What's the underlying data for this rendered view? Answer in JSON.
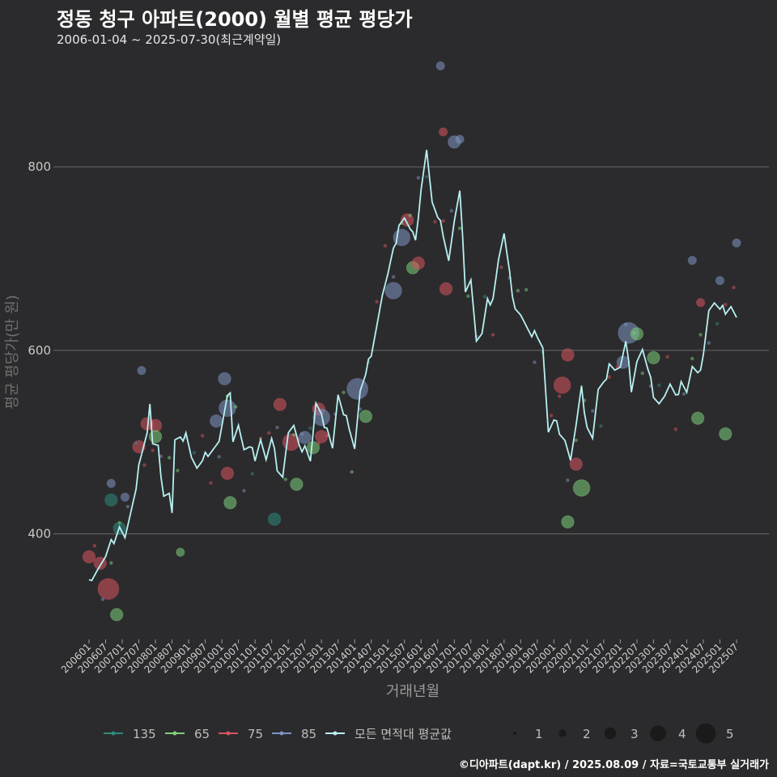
{
  "chart_data": {
    "type": "scatter",
    "title": "정동 청구 아파트(2000) 월별 평균 평당가",
    "subtitle": "2006-01-04 ~ 2025-07-30(최근계약일)",
    "xlabel": "거래년월",
    "ylabel": "평균 평당가(만 원)",
    "ylim": [
      285,
      920
    ],
    "yticks": [
      400,
      600,
      800
    ],
    "xticks": [
      "200601",
      "200607",
      "200701",
      "200707",
      "200801",
      "200807",
      "200901",
      "200907",
      "201001",
      "201007",
      "201101",
      "201107",
      "201201",
      "201207",
      "201301",
      "201307",
      "201401",
      "201407",
      "201501",
      "201507",
      "201601",
      "201607",
      "201701",
      "201707",
      "201801",
      "201807",
      "201901",
      "201907",
      "202001",
      "202007",
      "202101",
      "202107",
      "202201",
      "202207",
      "202301",
      "202307",
      "202401",
      "202407",
      "202501",
      "202507"
    ],
    "caption": "©디아파트(dapt.kr) / 2025.08.09 / 자료=국토교통부 실거래가",
    "legend": {
      "areas": [
        {
          "label": "135",
          "color": "#2f8a7e"
        },
        {
          "label": "65",
          "color": "#7ed07a"
        },
        {
          "label": "75",
          "color": "#d9545e"
        },
        {
          "label": "85",
          "color": "#7f93c2"
        },
        {
          "label": "모든 면적대 평균값",
          "color": "#b8f0f0"
        }
      ],
      "sizes": [
        "1",
        "2",
        "3",
        "4",
        "5"
      ]
    },
    "avg_line": {
      "name": "모든 면적대 평균값",
      "anchors": [
        [
          "200601",
          350
        ],
        [
          "200604",
          362
        ],
        [
          "200607",
          372
        ],
        [
          "200610",
          395
        ],
        [
          "200612",
          410
        ],
        [
          "200702",
          395
        ],
        [
          "200705",
          430
        ],
        [
          "200707",
          480
        ],
        [
          "200710",
          510
        ],
        [
          "200711",
          540
        ],
        [
          "200712",
          495
        ],
        [
          "200802",
          490
        ],
        [
          "200804",
          445
        ],
        [
          "200806",
          445
        ],
        [
          "200807",
          422
        ],
        [
          "200808",
          500
        ],
        [
          "200810",
          500
        ],
        [
          "200812",
          515
        ],
        [
          "200902",
          485
        ],
        [
          "200904",
          470
        ],
        [
          "200906",
          475
        ],
        [
          "200908",
          490
        ],
        [
          "200910",
          495
        ],
        [
          "200912",
          500
        ],
        [
          "201002",
          530
        ],
        [
          "201004",
          560
        ],
        [
          "201005",
          505
        ],
        [
          "201007",
          520
        ],
        [
          "201009",
          490
        ],
        [
          "201011",
          490
        ],
        [
          "201101",
          485
        ],
        [
          "201103",
          505
        ],
        [
          "201105",
          480
        ],
        [
          "201107",
          500
        ],
        [
          "201109",
          475
        ],
        [
          "201111",
          465
        ],
        [
          "201201",
          510
        ],
        [
          "201203",
          515
        ],
        [
          "201205",
          490
        ],
        [
          "201207",
          500
        ],
        [
          "201209",
          480
        ],
        [
          "201211",
          540
        ],
        [
          "201301",
          525
        ],
        [
          "201303",
          520
        ],
        [
          "201305",
          495
        ],
        [
          "201307",
          550
        ],
        [
          "201309",
          525
        ],
        [
          "201311",
          520
        ],
        [
          "201401",
          495
        ],
        [
          "201403",
          555
        ],
        [
          "201405",
          570
        ],
        [
          "201407",
          600
        ],
        [
          "201409",
          630
        ],
        [
          "201411",
          660
        ],
        [
          "201501",
          680
        ],
        [
          "201503",
          705
        ],
        [
          "201505",
          740
        ],
        [
          "201507",
          745
        ],
        [
          "201509",
          730
        ],
        [
          "201511",
          720
        ],
        [
          "201601",
          780
        ],
        [
          "201603",
          820
        ],
        [
          "201605",
          760
        ],
        [
          "201607",
          740
        ],
        [
          "201609",
          730
        ],
        [
          "201611",
          700
        ],
        [
          "201701",
          740
        ],
        [
          "201703",
          770
        ],
        [
          "201705",
          670
        ],
        [
          "201707",
          680
        ],
        [
          "201709",
          610
        ],
        [
          "201711",
          615
        ],
        [
          "201801",
          650
        ],
        [
          "201803",
          660
        ],
        [
          "201805",
          700
        ],
        [
          "201807",
          725
        ],
        [
          "201809",
          680
        ],
        [
          "201811",
          650
        ],
        [
          "201901",
          640
        ],
        [
          "201903",
          625
        ],
        [
          "201905",
          610
        ],
        [
          "201907",
          620
        ],
        [
          "201909",
          605
        ],
        [
          "201911",
          510
        ],
        [
          "202001",
          520
        ],
        [
          "202003",
          515
        ],
        [
          "202005",
          505
        ],
        [
          "202007",
          480
        ],
        [
          "202009",
          515
        ],
        [
          "202011",
          555
        ],
        [
          "202101",
          520
        ],
        [
          "202103",
          505
        ],
        [
          "202105",
          555
        ],
        [
          "202107",
          560
        ],
        [
          "202109",
          590
        ],
        [
          "202111",
          580
        ],
        [
          "202201",
          580
        ],
        [
          "202203",
          605
        ],
        [
          "202205",
          560
        ],
        [
          "202207",
          590
        ],
        [
          "202209",
          600
        ],
        [
          "202211",
          575
        ],
        [
          "202301",
          555
        ],
        [
          "202303",
          545
        ],
        [
          "202305",
          550
        ],
        [
          "202307",
          560
        ],
        [
          "202309",
          545
        ],
        [
          "202311",
          570
        ],
        [
          "202401",
          555
        ],
        [
          "202403",
          580
        ],
        [
          "202405",
          570
        ],
        [
          "202407",
          600
        ],
        [
          "202409",
          645
        ],
        [
          "202411",
          650
        ],
        [
          "202501",
          640
        ],
        [
          "202503",
          645
        ],
        [
          "202505",
          650
        ],
        [
          "202507",
          635
        ]
      ]
    },
    "points": [
      {
        "area": "75",
        "ym": "200601",
        "y": 375,
        "size": 2
      },
      {
        "area": "75",
        "ym": "200605",
        "y": 368,
        "size": 2
      },
      {
        "area": "75",
        "ym": "200608",
        "y": 340,
        "size": 4
      },
      {
        "area": "65",
        "ym": "200611",
        "y": 312,
        "size": 2
      },
      {
        "area": "135",
        "ym": "200609",
        "y": 437,
        "size": 2
      },
      {
        "area": "135",
        "ym": "200612",
        "y": 406,
        "size": 2
      },
      {
        "area": "85",
        "ym": "200609",
        "y": 455,
        "size": 1
      },
      {
        "area": "85",
        "ym": "200702",
        "y": 440,
        "size": 1
      },
      {
        "area": "75",
        "ym": "200707",
        "y": 495,
        "size": 2
      },
      {
        "area": "75",
        "ym": "200710",
        "y": 520,
        "size": 2
      },
      {
        "area": "75",
        "ym": "200801",
        "y": 518,
        "size": 2
      },
      {
        "area": "65",
        "ym": "200801",
        "y": 506,
        "size": 2
      },
      {
        "area": "85",
        "ym": "200708",
        "y": 578,
        "size": 1
      },
      {
        "area": "65",
        "ym": "200810",
        "y": 380,
        "size": 1
      },
      {
        "area": "85",
        "ym": "200911",
        "y": 523,
        "size": 2
      },
      {
        "area": "85",
        "ym": "201002",
        "y": 569,
        "size": 2
      },
      {
        "area": "85",
        "ym": "201003",
        "y": 537,
        "size": 3
      },
      {
        "area": "75",
        "ym": "201003",
        "y": 466,
        "size": 2
      },
      {
        "area": "65",
        "ym": "201004",
        "y": 434,
        "size": 2
      },
      {
        "area": "135",
        "ym": "201108",
        "y": 416,
        "size": 2
      },
      {
        "area": "75",
        "ym": "201110",
        "y": 541,
        "size": 2
      },
      {
        "area": "75",
        "ym": "201202",
        "y": 500,
        "size": 3
      },
      {
        "area": "65",
        "ym": "201204",
        "y": 454,
        "size": 2
      },
      {
        "area": "85",
        "ym": "201207",
        "y": 505,
        "size": 2
      },
      {
        "area": "65",
        "ym": "201210",
        "y": 494,
        "size": 2
      },
      {
        "area": "75",
        "ym": "201212",
        "y": 536,
        "size": 2
      },
      {
        "area": "75",
        "ym": "201301",
        "y": 506,
        "size": 2
      },
      {
        "area": "85",
        "ym": "201301",
        "y": 527,
        "size": 3
      },
      {
        "area": "85",
        "ym": "201402",
        "y": 558,
        "size": 4
      },
      {
        "area": "65",
        "ym": "201405",
        "y": 528,
        "size": 2
      },
      {
        "area": "85",
        "ym": "201503",
        "y": 665,
        "size": 3
      },
      {
        "area": "85",
        "ym": "201506",
        "y": 723,
        "size": 3
      },
      {
        "area": "75",
        "ym": "201508",
        "y": 742,
        "size": 2
      },
      {
        "area": "65",
        "ym": "201510",
        "y": 690,
        "size": 2
      },
      {
        "area": "75",
        "ym": "201512",
        "y": 695,
        "size": 2
      },
      {
        "area": "75",
        "ym": "201610",
        "y": 667,
        "size": 2
      },
      {
        "area": "85",
        "ym": "201701",
        "y": 827,
        "size": 2
      },
      {
        "area": "85",
        "ym": "201608",
        "y": 910,
        "size": 1
      },
      {
        "area": "75",
        "ym": "201609",
        "y": 838,
        "size": 1
      },
      {
        "area": "85",
        "ym": "201703",
        "y": 830,
        "size": 1
      },
      {
        "area": "65",
        "ym": "202006",
        "y": 413,
        "size": 2
      },
      {
        "area": "75",
        "ym": "202006",
        "y": 595,
        "size": 2
      },
      {
        "area": "75",
        "ym": "202004",
        "y": 562,
        "size": 3
      },
      {
        "area": "75",
        "ym": "202009",
        "y": 476,
        "size": 2
      },
      {
        "area": "65",
        "ym": "202011",
        "y": 450,
        "size": 3
      },
      {
        "area": "85",
        "ym": "202202",
        "y": 587,
        "size": 2
      },
      {
        "area": "85",
        "ym": "202204",
        "y": 619,
        "size": 4
      },
      {
        "area": "65",
        "ym": "202207",
        "y": 618,
        "size": 2
      },
      {
        "area": "65",
        "ym": "202301",
        "y": 592,
        "size": 2
      },
      {
        "area": "65",
        "ym": "202405",
        "y": 526,
        "size": 2
      },
      {
        "area": "65",
        "ym": "202503",
        "y": 509,
        "size": 2
      },
      {
        "area": "85",
        "ym": "202507",
        "y": 717,
        "size": 1
      },
      {
        "area": "85",
        "ym": "202501",
        "y": 676,
        "size": 1
      },
      {
        "area": "75",
        "ym": "202406",
        "y": 652,
        "size": 1
      },
      {
        "area": "85",
        "ym": "202403",
        "y": 698,
        "size": 1
      }
    ]
  }
}
